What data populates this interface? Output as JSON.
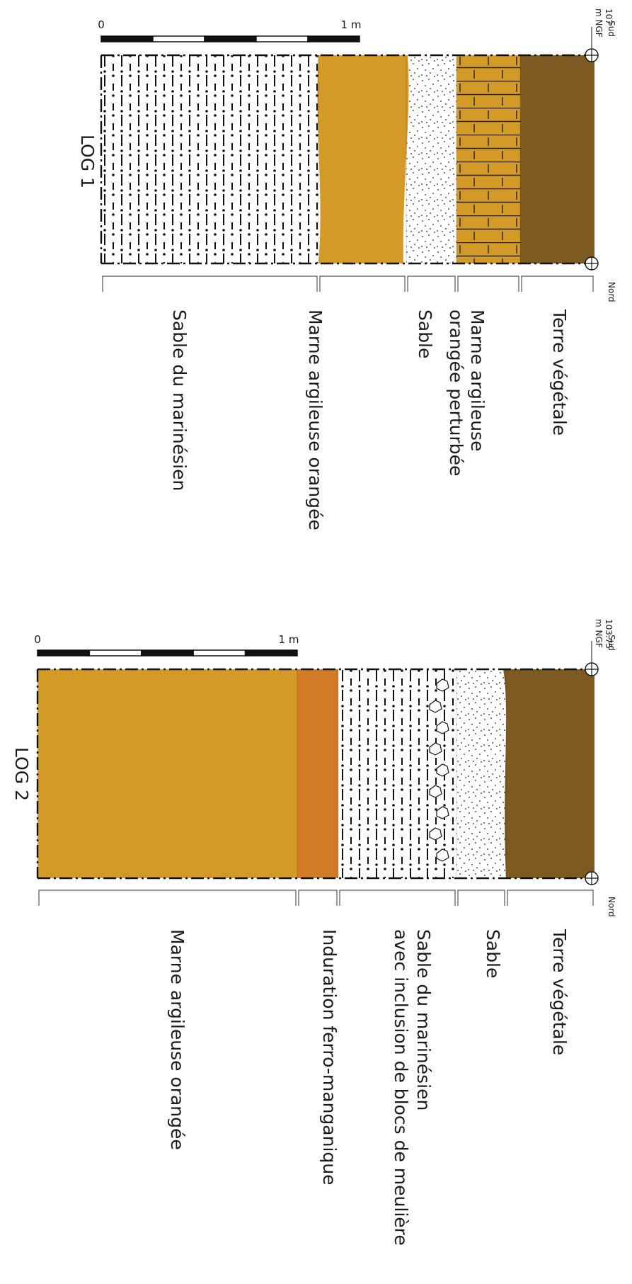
{
  "logs": [
    {
      "id": "log1",
      "title": "LOG 1",
      "elevation": "107",
      "elevation_unit": "m NGF",
      "south_label": "Sud",
      "north_label": "Nord",
      "scale": {
        "zero": "0",
        "one": "1 m"
      },
      "layers": [
        {
          "name": "Terre végétale",
          "lines": [
            "Terre végétale"
          ],
          "pattern": "soil",
          "color": "#7d5a22"
        },
        {
          "name": "Marne argileuse orangée perturbée",
          "lines": [
            "Marne argileuse",
            "orangée perturbée"
          ],
          "pattern": "brick",
          "color": "#d39a28"
        },
        {
          "name": "Sable",
          "lines": [
            "Sable"
          ],
          "pattern": "sand",
          "color": "#ffffff"
        },
        {
          "name": "Marne argileuse orangée",
          "lines": [
            "Marne argileuse orangée"
          ],
          "pattern": "marl",
          "color": "#d39a28"
        },
        {
          "name": "Sable du marinésien",
          "lines": [
            "Sable du marinésien"
          ],
          "pattern": "dashdot",
          "color": "#ffffff"
        }
      ]
    },
    {
      "id": "log2",
      "title": "LOG 2",
      "elevation": "103.75",
      "elevation_unit": "m NGF",
      "south_label": "Sud",
      "north_label": "Nord",
      "scale": {
        "zero": "0",
        "one": "1 m"
      },
      "layers": [
        {
          "name": "Terre végétale",
          "lines": [
            "Terre végétale"
          ],
          "pattern": "soil",
          "color": "#7d5a22"
        },
        {
          "name": "Sable",
          "lines": [
            "Sable"
          ],
          "pattern": "sand",
          "color": "#ffffff"
        },
        {
          "name": "Sable du marinésien avec inclusion de blocs de meulière",
          "lines": [
            "Sable du marinésien",
            "avec inclusion de blocs de meulière"
          ],
          "pattern": "dashdot-blocks",
          "color": "#ffffff"
        },
        {
          "name": "Induration ferro-manganique",
          "lines": [
            "Induration ferro-manganique"
          ],
          "pattern": "iron",
          "color": "#d17b26"
        },
        {
          "name": "Marne argileuse orangée",
          "lines": [
            "Marne argileuse orangée"
          ],
          "pattern": "marl",
          "color": "#d39a28"
        }
      ]
    }
  ]
}
